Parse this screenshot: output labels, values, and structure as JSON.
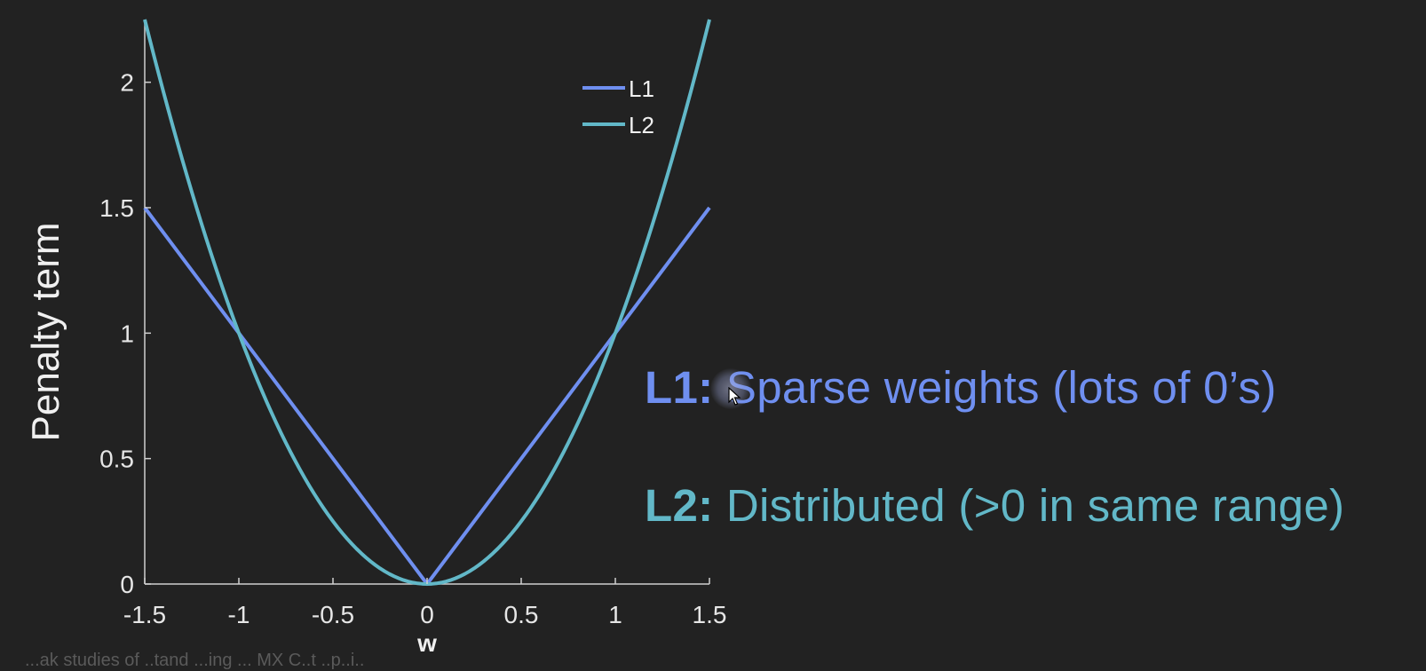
{
  "colors": {
    "background": "#222222",
    "axis": "#d0d0d0",
    "l1": "#6f8ff0",
    "l2": "#62b8c8",
    "text": "#e6e6e6"
  },
  "captions": {
    "l1": {
      "lead": "L1:",
      "text": " Sparse weights (lots of 0’s)"
    },
    "l2": {
      "lead": "L2:",
      "text": " Distributed (>0 in same range)"
    }
  },
  "bottom_text": "...ak studies of ..tand ...ing ... MX C..t ..p..i..",
  "chart_data": {
    "type": "line",
    "title": "",
    "xlabel": "w",
    "ylabel": "Penalty term",
    "xlim": [
      -1.5,
      1.5
    ],
    "ylim": [
      0,
      2.25
    ],
    "xticks": [
      -1.5,
      -1,
      -0.5,
      0,
      0.5,
      1,
      1.5
    ],
    "xtick_labels": [
      "-1.5",
      "-1",
      "-0.5",
      "0",
      "0.5",
      "1",
      "1.5"
    ],
    "yticks": [
      0,
      0.5,
      1,
      1.5,
      2
    ],
    "ytick_labels": [
      "0",
      "0.5",
      "1",
      "1.5",
      "2"
    ],
    "grid": false,
    "legend": {
      "placement": "top-right",
      "entries": [
        "L1",
        "L2"
      ]
    },
    "series": [
      {
        "name": "L1",
        "color": "#6f8ff0",
        "x": [
          -1.5,
          -1,
          -0.5,
          0,
          0.5,
          1,
          1.5
        ],
        "y": [
          1.5,
          1,
          0.5,
          0,
          0.5,
          1,
          1.5
        ]
      },
      {
        "name": "L2",
        "color": "#62b8c8",
        "x": [
          -1.5,
          -1.25,
          -1,
          -0.75,
          -0.5,
          -0.25,
          0,
          0.25,
          0.5,
          0.75,
          1,
          1.25,
          1.5
        ],
        "y": [
          2.25,
          1.5625,
          1,
          0.5625,
          0.25,
          0.0625,
          0,
          0.0625,
          0.25,
          0.5625,
          1,
          1.5625,
          2.25
        ]
      }
    ]
  }
}
